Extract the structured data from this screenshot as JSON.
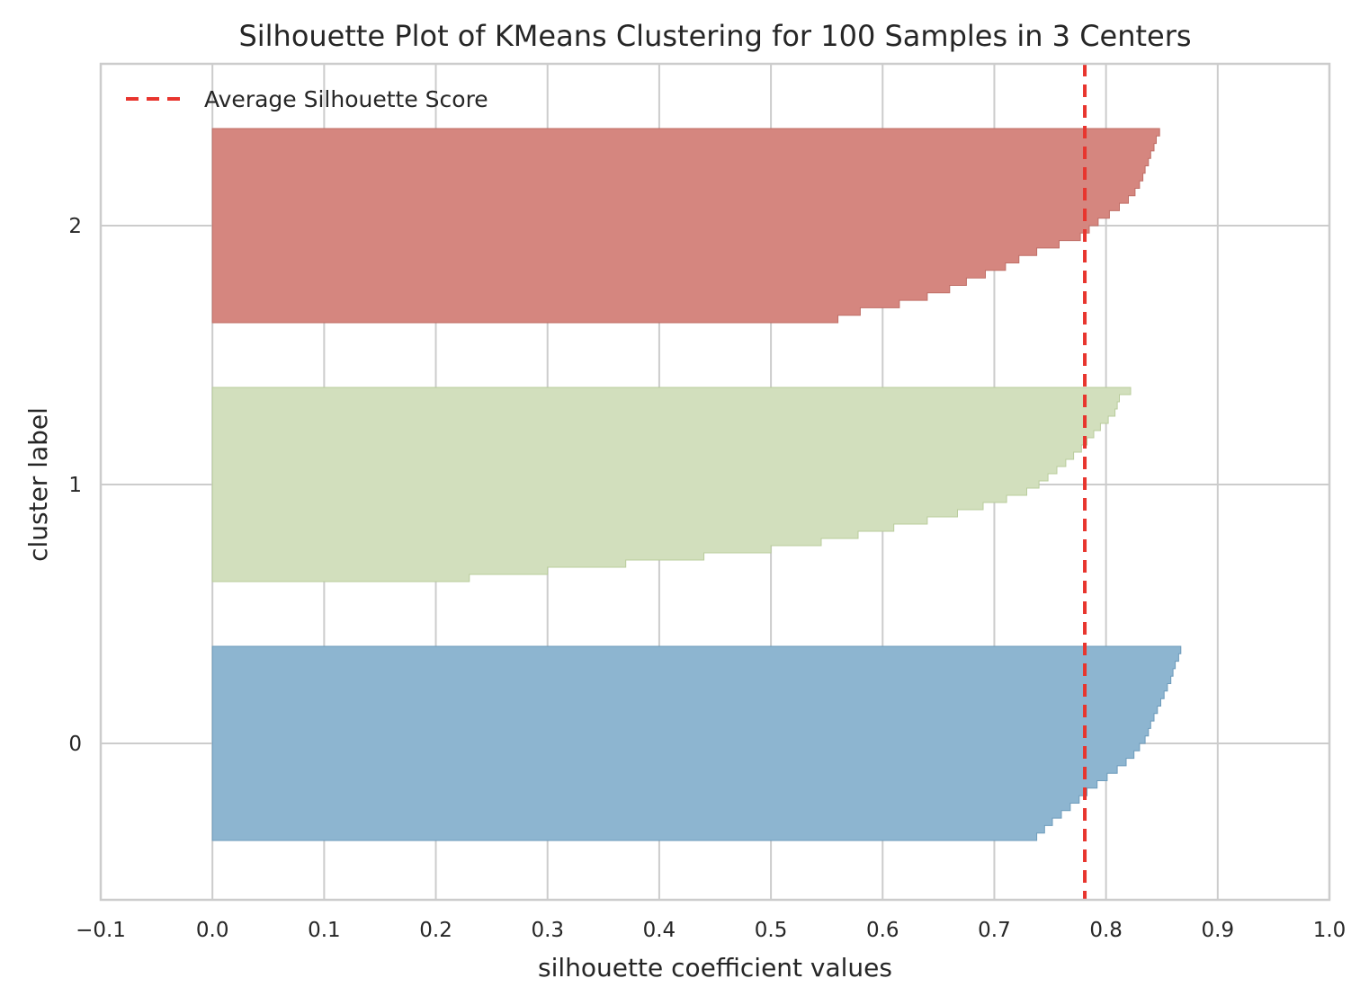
{
  "chart_data": {
    "type": "area",
    "title": "Silhouette Plot of KMeans Clustering for 100 Samples in 3 Centers",
    "xlabel": "silhouette coefficient values",
    "ylabel": "cluster label",
    "xlim": [
      -0.1,
      1.0
    ],
    "x_ticks": [
      "−0.1",
      "0.0",
      "0.1",
      "0.2",
      "0.3",
      "0.4",
      "0.5",
      "0.6",
      "0.7",
      "0.8",
      "0.9",
      "1.0"
    ],
    "y_ticks": [
      "0",
      "1",
      "2"
    ],
    "grid": true,
    "legend": {
      "placement": "top-left",
      "entries": [
        {
          "label": "Average Silhouette Score",
          "style": "dashed",
          "color": "#e8352e"
        }
      ]
    },
    "average_silhouette_score": 0.781,
    "series": [
      {
        "cluster": "0",
        "color": "#8db5d0",
        "edge_color": "#6d9bbb",
        "silhouette_values": [
          0.867,
          0.865,
          0.862,
          0.86,
          0.858,
          0.855,
          0.852,
          0.849,
          0.846,
          0.843,
          0.84,
          0.838,
          0.835,
          0.83,
          0.825,
          0.818,
          0.81,
          0.801,
          0.792,
          0.783,
          0.776,
          0.768,
          0.76,
          0.752,
          0.745,
          0.738
        ]
      },
      {
        "cluster": "1",
        "color": "#d2dfbd",
        "edge_color": "#b9cc9c",
        "silhouette_values": [
          0.822,
          0.812,
          0.81,
          0.808,
          0.802,
          0.795,
          0.789,
          0.783,
          0.778,
          0.771,
          0.764,
          0.756,
          0.748,
          0.74,
          0.729,
          0.711,
          0.69,
          0.667,
          0.64,
          0.61,
          0.578,
          0.545,
          0.5,
          0.44,
          0.37,
          0.3,
          0.23
        ]
      },
      {
        "cluster": "2",
        "color": "#d5867f",
        "edge_color": "#c06e66",
        "silhouette_values": [
          0.848,
          0.845,
          0.843,
          0.84,
          0.838,
          0.835,
          0.833,
          0.83,
          0.826,
          0.82,
          0.812,
          0.803,
          0.793,
          0.785,
          0.777,
          0.758,
          0.738,
          0.722,
          0.71,
          0.692,
          0.675,
          0.66,
          0.64,
          0.615,
          0.58,
          0.56
        ]
      }
    ]
  }
}
